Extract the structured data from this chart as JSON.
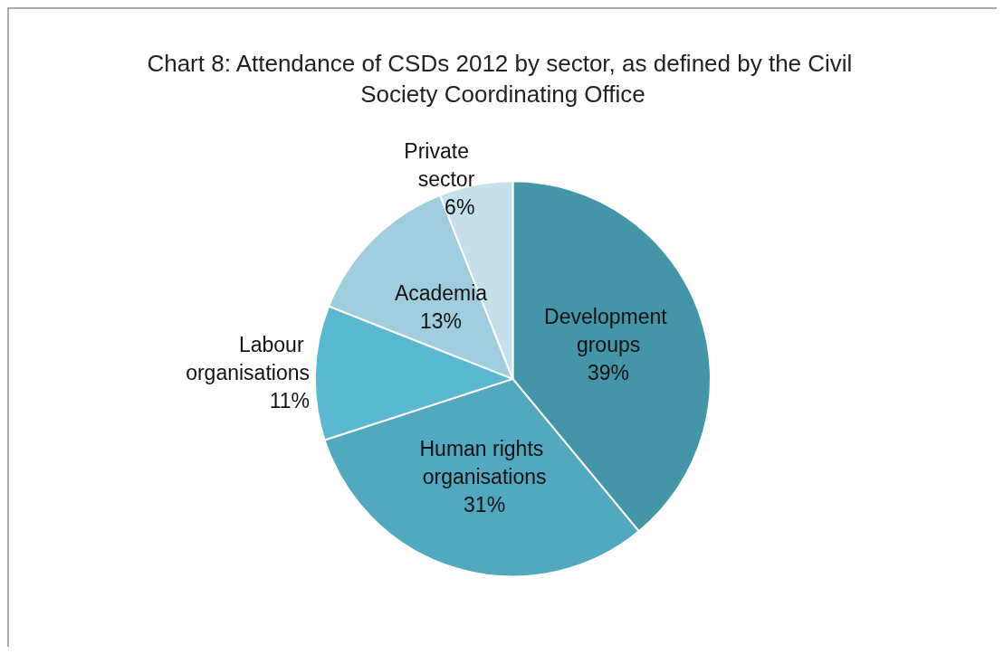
{
  "chart_data": {
    "type": "pie",
    "title": "Chart 8: Attendance of CSDs 2012 by sector, as defined by the Civil Society Coordinating Office",
    "categories": [
      "Development groups",
      "Human rights organisations",
      "Labour organisations",
      "Academia",
      "Private sector"
    ],
    "values": [
      39,
      31,
      11,
      13,
      6
    ],
    "value_labels": [
      "39%",
      "31%",
      "11%",
      "13%",
      "6%"
    ],
    "colors": [
      "#4395a7",
      "#52a8bf",
      "#5bb8d1",
      "#9fcdde",
      "#c5e0ea"
    ],
    "legend": false
  }
}
